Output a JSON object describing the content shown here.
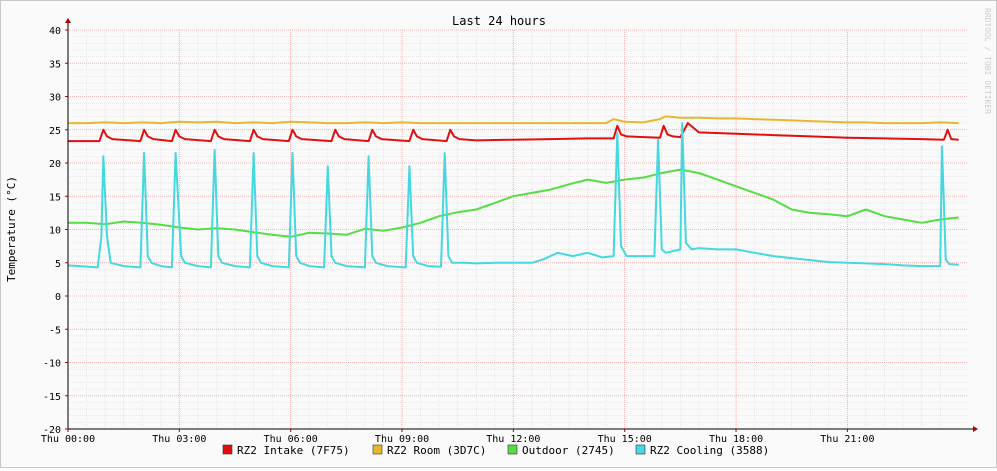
{
  "chart_data": {
    "type": "line",
    "title": "Last 24 hours",
    "ylabel": "Temperature (°C)",
    "xlabel": "",
    "watermark": "RRDTOOL / TOBI OETIKER",
    "xlim": [
      0,
      24.25
    ],
    "ylim": [
      -20,
      40
    ],
    "yticks": [
      -20,
      -15,
      -10,
      -5,
      0,
      5,
      10,
      15,
      20,
      25,
      30,
      35,
      40
    ],
    "xticks": [
      {
        "x": 0,
        "label": "Thu 00:00"
      },
      {
        "x": 3,
        "label": "Thu 03:00"
      },
      {
        "x": 6,
        "label": "Thu 06:00"
      },
      {
        "x": 9,
        "label": "Thu 09:00"
      },
      {
        "x": 12,
        "label": "Thu 12:00"
      },
      {
        "x": 15,
        "label": "Thu 15:00"
      },
      {
        "x": 18,
        "label": "Thu 18:00"
      },
      {
        "x": 21,
        "label": "Thu 21:00"
      }
    ],
    "grid": true,
    "legend_position": "bottom",
    "series": [
      {
        "name": "RZ2 Room (3D7C)",
        "color": "#e8b82c",
        "x": [
          0,
          0.5,
          1,
          1.5,
          2,
          2.5,
          3,
          3.5,
          4,
          4.5,
          5,
          5.5,
          6,
          6.5,
          7,
          7.5,
          8,
          8.5,
          9,
          9.5,
          10,
          10.5,
          11,
          11.5,
          12,
          12.5,
          13,
          13.5,
          14,
          14.5,
          14.7,
          15,
          15.5,
          15.95,
          16.1,
          16.5,
          17,
          17.5,
          18,
          18.5,
          19,
          19.5,
          20,
          20.5,
          21,
          21.5,
          22,
          22.5,
          23,
          23.5,
          24
        ],
        "y": [
          26,
          26,
          26.1,
          26,
          26.1,
          26,
          26.2,
          26.1,
          26.2,
          26,
          26.1,
          26,
          26.2,
          26.1,
          26,
          26,
          26.1,
          26,
          26.1,
          26,
          26,
          26,
          26,
          26,
          26,
          26,
          26,
          26,
          26,
          26,
          26.6,
          26.2,
          26.1,
          26.6,
          27,
          26.8,
          26.8,
          26.7,
          26.7,
          26.6,
          26.5,
          26.4,
          26.3,
          26.2,
          26.1,
          26.1,
          26,
          26,
          26,
          26.1,
          26
        ]
      },
      {
        "name": "RZ2 Intake (7F75)",
        "color": "#e01010",
        "x": [
          0,
          0.85,
          0.95,
          1.05,
          1.2,
          1.95,
          2.05,
          2.15,
          2.3,
          2.8,
          2.9,
          3,
          3.15,
          3.85,
          3.95,
          4.05,
          4.2,
          4.9,
          5,
          5.1,
          5.25,
          5.95,
          6.05,
          6.15,
          6.3,
          7.1,
          7.2,
          7.3,
          7.45,
          8.1,
          8.2,
          8.3,
          8.45,
          9.2,
          9.3,
          9.4,
          9.55,
          10.2,
          10.3,
          10.4,
          10.55,
          11,
          12,
          13,
          14,
          14.7,
          14.8,
          14.9,
          15.05,
          15.95,
          16.05,
          16.15,
          16.3,
          16.5,
          16.7,
          17,
          18,
          19,
          20,
          21,
          22,
          23,
          23.6,
          23.7,
          23.8,
          24
        ],
        "y": [
          23.3,
          23.3,
          25,
          24,
          23.6,
          23.3,
          25,
          24,
          23.6,
          23.3,
          25,
          24,
          23.6,
          23.3,
          25,
          24,
          23.6,
          23.3,
          25,
          24,
          23.6,
          23.3,
          25,
          24,
          23.6,
          23.3,
          25,
          24,
          23.6,
          23.3,
          25,
          24,
          23.6,
          23.3,
          25,
          24,
          23.6,
          23.3,
          25,
          24,
          23.6,
          23.4,
          23.5,
          23.6,
          23.7,
          23.7,
          25.6,
          24.3,
          24,
          23.8,
          25.6,
          24.3,
          24,
          23.9,
          26,
          24.6,
          24.4,
          24.2,
          24,
          23.8,
          23.7,
          23.6,
          23.5,
          25,
          23.6,
          23.5
        ]
      },
      {
        "name": "Outdoor (2745)",
        "color": "#55dd44",
        "x": [
          0,
          0.5,
          1,
          1.5,
          2,
          2.5,
          3,
          3.5,
          4,
          4.5,
          5,
          5.5,
          6,
          6.5,
          7,
          7.5,
          8,
          8.5,
          9,
          9.5,
          10,
          10.5,
          11,
          11.5,
          12,
          12.5,
          13,
          13.5,
          14,
          14.5,
          15,
          15.5,
          16,
          16.5,
          17,
          17.5,
          18,
          18.5,
          19,
          19.5,
          20,
          20.5,
          21,
          21.5,
          22,
          22.5,
          23,
          23.5,
          24
        ],
        "y": [
          11,
          11,
          10.8,
          11.2,
          11,
          10.7,
          10.3,
          10,
          10.2,
          10,
          9.6,
          9.2,
          8.9,
          9.5,
          9.4,
          9.2,
          10.1,
          9.8,
          10.3,
          11,
          12,
          12.6,
          13,
          14,
          15,
          15.5,
          16,
          16.8,
          17.5,
          17,
          17.5,
          17.8,
          18.5,
          19,
          18.5,
          17.5,
          16.5,
          15.5,
          14.5,
          13,
          12.5,
          12.3,
          12,
          13,
          12,
          11.5,
          11,
          11.5,
          11.8
        ]
      },
      {
        "name": "RZ2 Cooling (3588)",
        "color": "#44d8e0",
        "x": [
          0,
          0.8,
          0.9,
          0.95,
          1.05,
          1.15,
          1.5,
          1.95,
          2.05,
          2.15,
          2.25,
          2.5,
          2.8,
          2.9,
          3.05,
          3.15,
          3.5,
          3.85,
          3.95,
          4.05,
          4.15,
          4.5,
          4.9,
          5,
          5.1,
          5.2,
          5.5,
          5.95,
          6.05,
          6.15,
          6.25,
          6.5,
          6.9,
          7,
          7.1,
          7.2,
          7.5,
          8,
          8.1,
          8.2,
          8.3,
          8.6,
          9.1,
          9.2,
          9.3,
          9.4,
          9.7,
          10.05,
          10.15,
          10.25,
          10.35,
          10.7,
          11,
          11.5,
          12,
          12.5,
          12.8,
          13.2,
          13.6,
          14,
          14.4,
          14.7,
          14.8,
          14.9,
          15.05,
          15.5,
          15.8,
          15.9,
          16,
          16.1,
          16.5,
          16.55,
          16.65,
          16.8,
          17,
          17.5,
          18,
          18.5,
          19,
          19.5,
          20,
          20.5,
          21,
          21.5,
          22,
          22.5,
          23,
          23.5,
          23.55,
          23.65,
          23.75,
          24
        ],
        "y": [
          4.6,
          4.3,
          9,
          21,
          9,
          5,
          4.5,
          4.3,
          21.5,
          6,
          5,
          4.5,
          4.3,
          21.5,
          6,
          5,
          4.5,
          4.3,
          22,
          6,
          5,
          4.5,
          4.3,
          21.5,
          6,
          5,
          4.5,
          4.3,
          21.5,
          6,
          5,
          4.5,
          4.3,
          19.5,
          6,
          5,
          4.5,
          4.3,
          21,
          6,
          5,
          4.5,
          4.3,
          19.5,
          6,
          5,
          4.5,
          4.4,
          21.5,
          6,
          5,
          5,
          4.9,
          5,
          5,
          5,
          5.5,
          6.5,
          6,
          6.5,
          5.8,
          6,
          24.5,
          7.5,
          6,
          6,
          6,
          23.5,
          7,
          6.5,
          7,
          26,
          8,
          7,
          7.2,
          7,
          7,
          6.5,
          6,
          5.7,
          5.4,
          5.1,
          5,
          4.9,
          4.8,
          4.6,
          4.5,
          4.5,
          22.5,
          5.5,
          4.8,
          4.7
        ]
      }
    ]
  }
}
